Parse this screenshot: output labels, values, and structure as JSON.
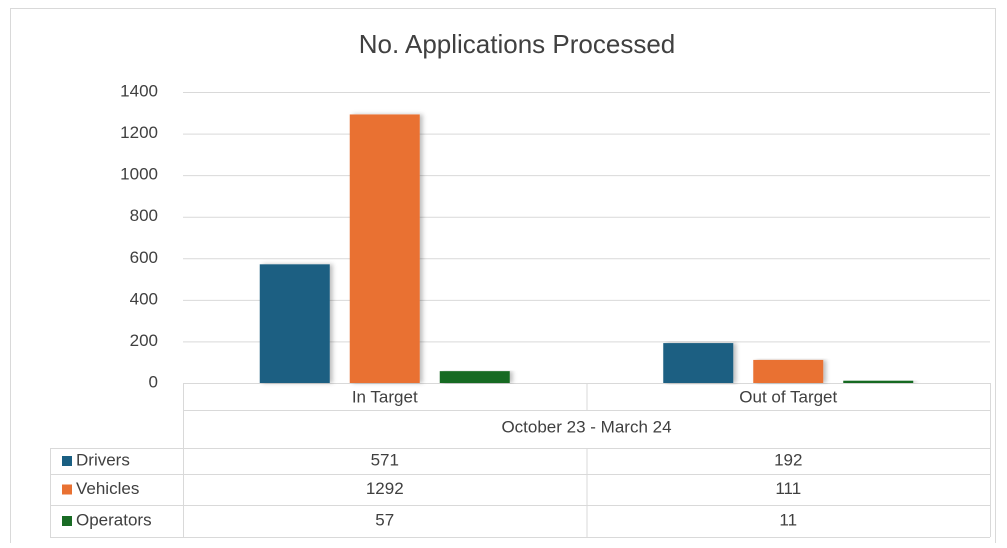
{
  "chart_data": {
    "type": "bar",
    "title": "No.  Applications Processed",
    "x_label": "October 23 - March 24",
    "categories": [
      "In Target",
      "Out of Target"
    ],
    "series": [
      {
        "name": "Drivers",
        "color": "#1a5f82",
        "values": [
          571,
          192
        ]
      },
      {
        "name": "Vehicles",
        "color": "#e97132",
        "values": [
          1292,
          111
        ]
      },
      {
        "name": "Operators",
        "color": "#196b24",
        "values": [
          57,
          11
        ]
      }
    ],
    "ylim": [
      0,
      1400
    ],
    "yticks": [
      0,
      200,
      400,
      600,
      800,
      1000,
      1200,
      1400
    ],
    "grid": true,
    "data_table": true
  }
}
